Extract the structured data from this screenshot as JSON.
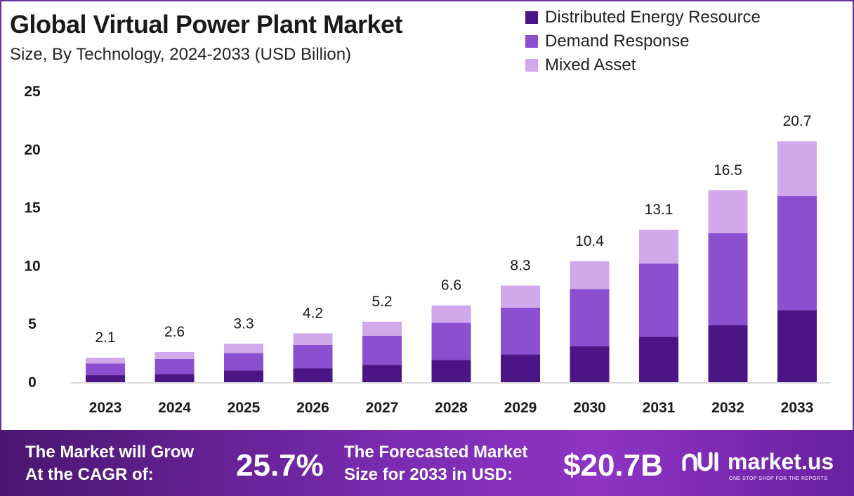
{
  "header": {
    "title": "Global Virtual Power Plant Market",
    "subtitle": "Size, By Technology, 2024-2033 (USD Billion)"
  },
  "legend": [
    {
      "label": "Distributed Energy Resource",
      "color": "#4b1585"
    },
    {
      "label": "Demand Response",
      "color": "#8c4fd0"
    },
    {
      "label": "Mixed Asset",
      "color": "#d1a8ec"
    }
  ],
  "chart_data": {
    "type": "bar",
    "stacked": true,
    "categories": [
      "2023",
      "2024",
      "2025",
      "2026",
      "2027",
      "2028",
      "2029",
      "2030",
      "2031",
      "2032",
      "2033"
    ],
    "series": [
      {
        "name": "Distributed Energy Resource",
        "color": "#4b1585",
        "values": [
          0.6,
          0.7,
          1.0,
          1.2,
          1.5,
          1.9,
          2.4,
          3.1,
          3.9,
          4.9,
          6.2
        ]
      },
      {
        "name": "Demand Response",
        "color": "#8c4fd0",
        "values": [
          1.0,
          1.3,
          1.5,
          2.0,
          2.5,
          3.2,
          4.0,
          4.9,
          6.3,
          7.9,
          9.8
        ]
      },
      {
        "name": "Mixed Asset",
        "color": "#d1a8ec",
        "values": [
          0.5,
          0.6,
          0.8,
          1.0,
          1.2,
          1.5,
          1.9,
          2.4,
          2.9,
          3.7,
          4.7
        ]
      }
    ],
    "totals": [
      "2.1",
      "2.6",
      "3.3",
      "4.2",
      "5.2",
      "6.6",
      "8.3",
      "10.4",
      "13.1",
      "16.5",
      "20.7"
    ],
    "y_ticks": [
      "0",
      "5",
      "10",
      "15",
      "20",
      "25"
    ],
    "ylim": [
      0,
      25
    ],
    "legend_position": "top-right",
    "grid": false
  },
  "banner": {
    "cagr_label_line1": "The Market will Grow",
    "cagr_label_line2": "At the CAGR of:",
    "cagr_value": "25.7%",
    "forecast_label_line1": "The Forecasted Market",
    "forecast_label_line2": "Size for 2033 in USD:",
    "forecast_value": "$20.7B",
    "logo_name": "market.us",
    "logo_tagline": "ONE STOP SHOP FOR THE REPORTS"
  }
}
